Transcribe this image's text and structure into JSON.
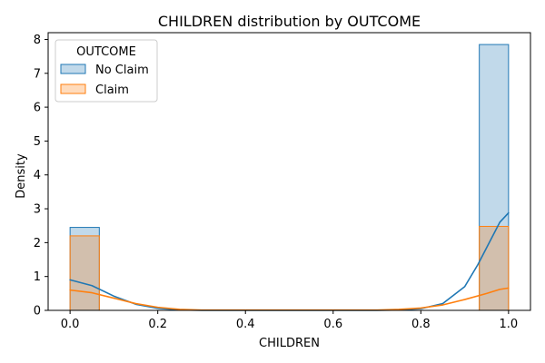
{
  "chart_data": {
    "type": "histogram",
    "title": "CHILDREN distribution by OUTCOME",
    "xlabel": "CHILDREN",
    "ylabel": "Density",
    "xlim": [
      -0.05,
      1.05
    ],
    "ylim": [
      0,
      8.2
    ],
    "xticks": [
      "0.0",
      "0.2",
      "0.4",
      "0.6",
      "0.8",
      "1.0"
    ],
    "yticks": [
      "0",
      "1",
      "2",
      "3",
      "4",
      "5",
      "6",
      "7",
      "8"
    ],
    "legend": {
      "title": "OUTCOME",
      "position": "upper-left",
      "entries": [
        "No Claim",
        "Claim"
      ]
    },
    "series": [
      {
        "name": "No Claim",
        "color": "#1f77b4",
        "bins": [
          {
            "x0": 0.0,
            "x1": 0.0667,
            "density": 2.45
          },
          {
            "x0": 0.9333,
            "x1": 1.0,
            "density": 7.85
          }
        ],
        "kde": [
          [
            0.0,
            0.9
          ],
          [
            0.05,
            0.73
          ],
          [
            0.1,
            0.42
          ],
          [
            0.15,
            0.18
          ],
          [
            0.2,
            0.06
          ],
          [
            0.25,
            0.015
          ],
          [
            0.3,
            0.0
          ],
          [
            0.7,
            0.0
          ],
          [
            0.75,
            0.01
          ],
          [
            0.8,
            0.05
          ],
          [
            0.85,
            0.2
          ],
          [
            0.9,
            0.7
          ],
          [
            0.93,
            1.35
          ],
          [
            0.96,
            2.1
          ],
          [
            0.98,
            2.6
          ],
          [
            1.0,
            2.88
          ]
        ]
      },
      {
        "name": "Claim",
        "color": "#ff7f0e",
        "bins": [
          {
            "x0": 0.0,
            "x1": 0.0667,
            "density": 2.2
          },
          {
            "x0": 0.9333,
            "x1": 1.0,
            "density": 2.48
          }
        ],
        "kde": [
          [
            0.0,
            0.6
          ],
          [
            0.05,
            0.52
          ],
          [
            0.1,
            0.36
          ],
          [
            0.15,
            0.2
          ],
          [
            0.2,
            0.09
          ],
          [
            0.25,
            0.03
          ],
          [
            0.3,
            0.01
          ],
          [
            0.7,
            0.01
          ],
          [
            0.75,
            0.03
          ],
          [
            0.8,
            0.07
          ],
          [
            0.85,
            0.16
          ],
          [
            0.9,
            0.32
          ],
          [
            0.95,
            0.5
          ],
          [
            0.98,
            0.62
          ],
          [
            1.0,
            0.66
          ]
        ]
      }
    ]
  }
}
